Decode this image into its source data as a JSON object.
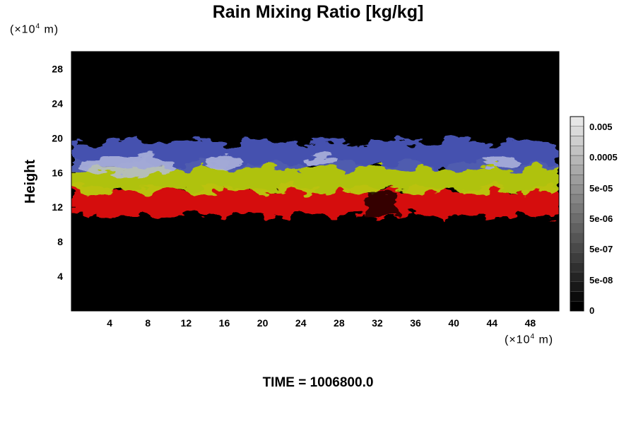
{
  "chart_data": {
    "type": "heatmap",
    "title": "Rain Mixing Ratio [kg/kg]",
    "ylabel": "Height",
    "xlabel": "",
    "x_unit_prefix": "(×10",
    "x_unit_exp": "4",
    "x_unit_suffix": " m)",
    "y_unit_prefix": "(×10",
    "y_unit_exp": "4",
    "y_unit_suffix": " m)",
    "xlim": [
      0,
      51
    ],
    "ylim": [
      0,
      30
    ],
    "x_ticks": [
      4,
      8,
      12,
      16,
      20,
      24,
      28,
      32,
      36,
      40,
      44,
      48
    ],
    "y_ticks": [
      4,
      8,
      12,
      16,
      20,
      24,
      28
    ],
    "background": "#000000",
    "layers": [
      {
        "name": "red-band",
        "color": "#e01010",
        "ymin": 11.0,
        "ymax": 14.2
      },
      {
        "name": "yellow-band",
        "color": "#b8cc10",
        "ymin": 13.8,
        "ymax": 17.0
      },
      {
        "name": "blue-band",
        "color": "#4a55b8",
        "ymin": 16.5,
        "ymax": 19.6
      }
    ],
    "colorbar": {
      "labels": [
        "0.005",
        "0.0005",
        "5e-05",
        "5e-06",
        "5e-07",
        "5e-08",
        "0"
      ],
      "levels": 20,
      "color_min": "#000000",
      "color_max": "#e6e6e6"
    },
    "footer": "TIME = 1006800.0"
  }
}
